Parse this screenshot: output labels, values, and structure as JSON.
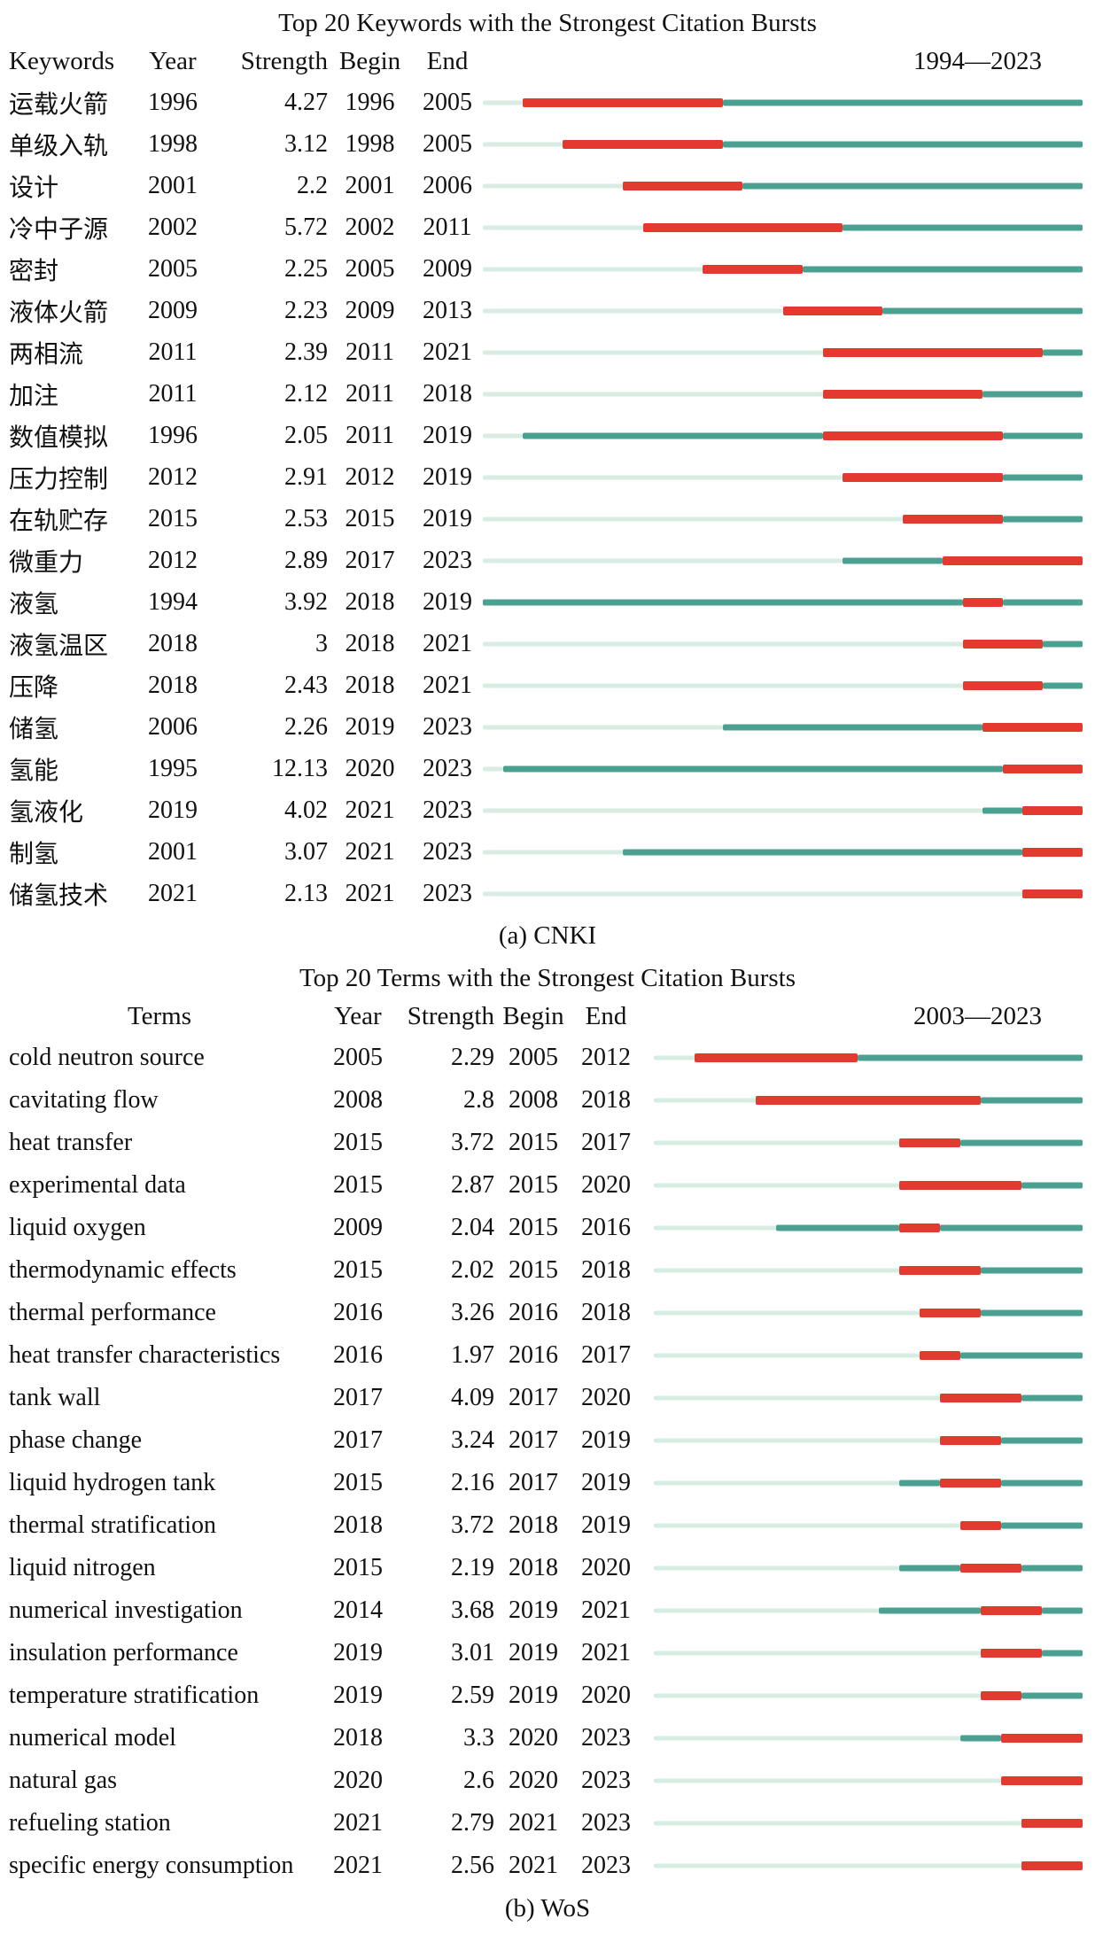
{
  "colors": {
    "burst": "#e4392e",
    "active": "#4aa091",
    "inactive": "#d8ece3"
  },
  "chart_data": [
    {
      "type": "bar",
      "variant": "citation-burst-timeline",
      "title": "Top 20 Keywords with the Strongest Citation Bursts",
      "caption": "(a) CNKI",
      "columns": {
        "label": "Keywords",
        "year": "Year",
        "strength": "Strength",
        "begin": "Begin",
        "end": "End"
      },
      "period_label": "1994—2023",
      "period": {
        "start": 1994,
        "end": 2023
      },
      "rows": [
        {
          "label": "运载火箭",
          "year": 1996,
          "strength": "4.27",
          "begin": 1996,
          "end": 2005
        },
        {
          "label": "单级入轨",
          "year": 1998,
          "strength": "3.12",
          "begin": 1998,
          "end": 2005
        },
        {
          "label": "设计",
          "year": 2001,
          "strength": "2.2",
          "begin": 2001,
          "end": 2006
        },
        {
          "label": "冷中子源",
          "year": 2002,
          "strength": "5.72",
          "begin": 2002,
          "end": 2011
        },
        {
          "label": "密封",
          "year": 2005,
          "strength": "2.25",
          "begin": 2005,
          "end": 2009
        },
        {
          "label": "液体火箭",
          "year": 2009,
          "strength": "2.23",
          "begin": 2009,
          "end": 2013
        },
        {
          "label": "两相流",
          "year": 2011,
          "strength": "2.39",
          "begin": 2011,
          "end": 2021
        },
        {
          "label": "加注",
          "year": 2011,
          "strength": "2.12",
          "begin": 2011,
          "end": 2018
        },
        {
          "label": "数值模拟",
          "year": 1996,
          "strength": "2.05",
          "begin": 2011,
          "end": 2019
        },
        {
          "label": "压力控制",
          "year": 2012,
          "strength": "2.91",
          "begin": 2012,
          "end": 2019
        },
        {
          "label": "在轨贮存",
          "year": 2015,
          "strength": "2.53",
          "begin": 2015,
          "end": 2019
        },
        {
          "label": "微重力",
          "year": 2012,
          "strength": "2.89",
          "begin": 2017,
          "end": 2023
        },
        {
          "label": "液氢",
          "year": 1994,
          "strength": "3.92",
          "begin": 2018,
          "end": 2019
        },
        {
          "label": "液氢温区",
          "year": 2018,
          "strength": "3",
          "begin": 2018,
          "end": 2021
        },
        {
          "label": "压降",
          "year": 2018,
          "strength": "2.43",
          "begin": 2018,
          "end": 2021
        },
        {
          "label": "储氢",
          "year": 2006,
          "strength": "2.26",
          "begin": 2019,
          "end": 2023
        },
        {
          "label": "氢能",
          "year": 1995,
          "strength": "12.13",
          "begin": 2020,
          "end": 2023
        },
        {
          "label": "氢液化",
          "year": 2019,
          "strength": "4.02",
          "begin": 2021,
          "end": 2023
        },
        {
          "label": "制氢",
          "year": 2001,
          "strength": "3.07",
          "begin": 2021,
          "end": 2023
        },
        {
          "label": "储氢技术",
          "year": 2021,
          "strength": "2.13",
          "begin": 2021,
          "end": 2023
        }
      ]
    },
    {
      "type": "bar",
      "variant": "citation-burst-timeline",
      "title": "Top 20 Terms with the Strongest Citation Bursts",
      "caption": "(b) WoS",
      "columns": {
        "label": "Terms",
        "year": "Year",
        "strength": "Strength",
        "begin": "Begin",
        "end": "End"
      },
      "period_label": "2003—2023",
      "period": {
        "start": 2003,
        "end": 2023
      },
      "rows": [
        {
          "label": "cold neutron source",
          "year": 2005,
          "strength": "2.29",
          "begin": 2005,
          "end": 2012
        },
        {
          "label": "cavitating flow",
          "year": 2008,
          "strength": "2.8",
          "begin": 2008,
          "end": 2018
        },
        {
          "label": "heat transfer",
          "year": 2015,
          "strength": "3.72",
          "begin": 2015,
          "end": 2017
        },
        {
          "label": "experimental data",
          "year": 2015,
          "strength": "2.87",
          "begin": 2015,
          "end": 2020
        },
        {
          "label": "liquid oxygen",
          "year": 2009,
          "strength": "2.04",
          "begin": 2015,
          "end": 2016
        },
        {
          "label": "thermodynamic effects",
          "year": 2015,
          "strength": "2.02",
          "begin": 2015,
          "end": 2018
        },
        {
          "label": "thermal performance",
          "year": 2016,
          "strength": "3.26",
          "begin": 2016,
          "end": 2018
        },
        {
          "label": "heat transfer characteristics",
          "year": 2016,
          "strength": "1.97",
          "begin": 2016,
          "end": 2017
        },
        {
          "label": "tank wall",
          "year": 2017,
          "strength": "4.09",
          "begin": 2017,
          "end": 2020
        },
        {
          "label": "phase change",
          "year": 2017,
          "strength": "3.24",
          "begin": 2017,
          "end": 2019
        },
        {
          "label": "liquid hydrogen tank",
          "year": 2015,
          "strength": "2.16",
          "begin": 2017,
          "end": 2019
        },
        {
          "label": "thermal stratification",
          "year": 2018,
          "strength": "3.72",
          "begin": 2018,
          "end": 2019
        },
        {
          "label": "liquid nitrogen",
          "year": 2015,
          "strength": "2.19",
          "begin": 2018,
          "end": 2020
        },
        {
          "label": "numerical investigation",
          "year": 2014,
          "strength": "3.68",
          "begin": 2019,
          "end": 2021
        },
        {
          "label": "insulation performance",
          "year": 2019,
          "strength": "3.01",
          "begin": 2019,
          "end": 2021
        },
        {
          "label": "temperature stratification",
          "year": 2019,
          "strength": "2.59",
          "begin": 2019,
          "end": 2020
        },
        {
          "label": "numerical model",
          "year": 2018,
          "strength": "3.3",
          "begin": 2020,
          "end": 2023
        },
        {
          "label": "natural gas",
          "year": 2020,
          "strength": "2.6",
          "begin": 2020,
          "end": 2023
        },
        {
          "label": "refueling station",
          "year": 2021,
          "strength": "2.79",
          "begin": 2021,
          "end": 2023
        },
        {
          "label": "specific energy consumption",
          "year": 2021,
          "strength": "2.56",
          "begin": 2021,
          "end": 2023
        }
      ]
    }
  ]
}
